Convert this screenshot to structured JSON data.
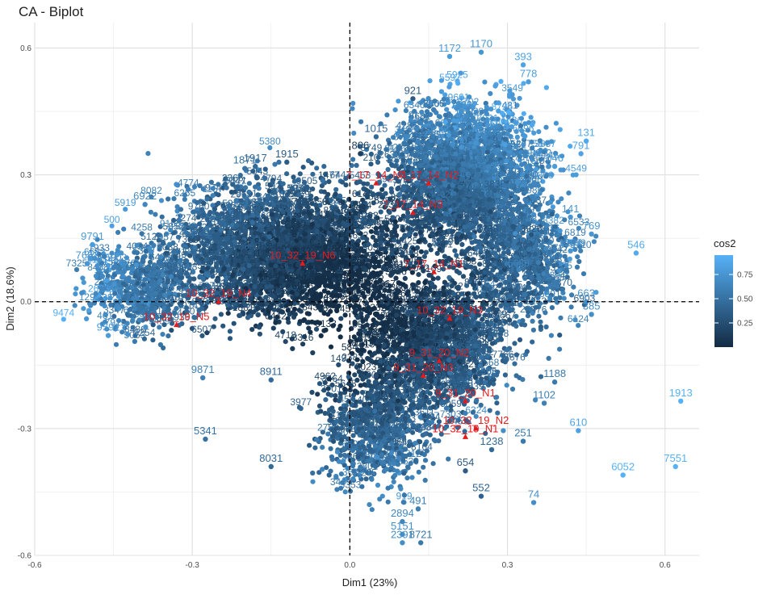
{
  "chart_data": {
    "type": "scatter",
    "title": "CA - Biplot",
    "xlabel": "Dim1 (23%)",
    "ylabel": "Dim2 (18.6%)",
    "xlim": [
      -0.6,
      0.665
    ],
    "ylim": [
      -0.6,
      0.66
    ],
    "xticks": [
      -0.6,
      -0.3,
      0.0,
      0.3,
      0.6
    ],
    "yticks": [
      -0.6,
      -0.3,
      0.0,
      0.3,
      0.6
    ],
    "xtick_labels": [
      "-0.6",
      "-0.3",
      "0.0",
      "0.3",
      "0.6"
    ],
    "ytick_labels": [
      "-0.6",
      "-0.3",
      "0.0",
      "0.3",
      "0.6"
    ],
    "grid": true,
    "reference_lines": {
      "x": 0,
      "y": 0,
      "style": "dashed"
    },
    "color_variable": "cos2",
    "color_scale": {
      "low": "#132b43",
      "high": "#56b1f7",
      "range": [
        0.0,
        0.95
      ]
    },
    "legend": {
      "title": "cos2",
      "ticks": [
        0.25,
        0.5,
        0.75
      ],
      "tick_labels": [
        "0.25",
        "0.50",
        "0.75"
      ],
      "position": "right"
    },
    "row_points": [
      {
        "label": "1172",
        "x": 0.19,
        "y": 0.58,
        "cos2": 0.8
      },
      {
        "label": "1170",
        "x": 0.25,
        "y": 0.59,
        "cos2": 0.75
      },
      {
        "label": "393",
        "x": 0.33,
        "y": 0.56,
        "cos2": 0.85
      },
      {
        "label": "778",
        "x": 0.34,
        "y": 0.52,
        "cos2": 0.8
      },
      {
        "label": "921",
        "x": 0.12,
        "y": 0.48,
        "cos2": 0.35
      },
      {
        "label": "1015",
        "x": 0.05,
        "y": 0.39,
        "cos2": 0.45
      },
      {
        "label": "806",
        "x": 0.02,
        "y": 0.35,
        "cos2": 0.15
      },
      {
        "label": "131",
        "x": 0.45,
        "y": 0.38,
        "cos2": 0.9
      },
      {
        "label": "791",
        "x": 0.44,
        "y": 0.35,
        "cos2": 0.85
      },
      {
        "label": "646",
        "x": 0.39,
        "y": 0.32,
        "cos2": 0.8
      },
      {
        "label": "141",
        "x": 0.42,
        "y": 0.2,
        "cos2": 0.75
      },
      {
        "label": "769",
        "x": 0.46,
        "y": 0.16,
        "cos2": 0.75
      },
      {
        "label": "546",
        "x": 0.545,
        "y": 0.115,
        "cos2": 0.9
      },
      {
        "label": "1204",
        "x": 0.42,
        "y": 0.12,
        "cos2": 0.75
      },
      {
        "label": "663",
        "x": 0.45,
        "y": 0.0,
        "cos2": 0.7
      },
      {
        "label": "385",
        "x": 0.46,
        "y": -0.03,
        "cos2": 0.7
      },
      {
        "label": "1913",
        "x": 0.63,
        "y": -0.235,
        "cos2": 0.95
      },
      {
        "label": "610",
        "x": 0.435,
        "y": -0.305,
        "cos2": 0.85
      },
      {
        "label": "6052",
        "x": 0.52,
        "y": -0.41,
        "cos2": 0.95
      },
      {
        "label": "7551",
        "x": 0.62,
        "y": -0.39,
        "cos2": 0.95
      },
      {
        "label": "74",
        "x": 0.35,
        "y": -0.475,
        "cos2": 0.7
      },
      {
        "label": "552",
        "x": 0.25,
        "y": -0.46,
        "cos2": 0.4
      },
      {
        "label": "654",
        "x": 0.22,
        "y": -0.4,
        "cos2": 0.35
      },
      {
        "label": "251",
        "x": 0.33,
        "y": -0.33,
        "cos2": 0.55
      },
      {
        "label": "1238",
        "x": 0.27,
        "y": -0.35,
        "cos2": 0.45
      },
      {
        "label": "1102",
        "x": 0.37,
        "y": -0.24,
        "cos2": 0.6
      },
      {
        "label": "1188",
        "x": 0.39,
        "y": -0.19,
        "cos2": 0.55
      },
      {
        "label": "5341",
        "x": -0.275,
        "y": -0.325,
        "cos2": 0.5
      },
      {
        "label": "8031",
        "x": -0.15,
        "y": -0.39,
        "cos2": 0.45
      },
      {
        "label": "2894",
        "x": 0.1,
        "y": -0.52,
        "cos2": 0.65
      },
      {
        "label": "491",
        "x": 0.13,
        "y": -0.49,
        "cos2": 0.6
      },
      {
        "label": "5151",
        "x": 0.1,
        "y": -0.55,
        "cos2": 0.7
      },
      {
        "label": "2391",
        "x": 0.1,
        "y": -0.57,
        "cos2": 0.7
      },
      {
        "label": "8721",
        "x": 0.135,
        "y": -0.57,
        "cos2": 0.55
      },
      {
        "label": "9791",
        "x": -0.49,
        "y": 0.135,
        "cos2": 0.8
      },
      {
        "label": "7682",
        "x": -0.5,
        "y": 0.09,
        "cos2": 0.75
      },
      {
        "label": "6922",
        "x": -0.39,
        "y": 0.23,
        "cos2": 0.65
      },
      {
        "label": "9591",
        "x": -0.46,
        "y": -0.08,
        "cos2": 0.8
      },
      {
        "label": "9871",
        "x": -0.28,
        "y": -0.18,
        "cos2": 0.6
      },
      {
        "label": "8911",
        "x": -0.15,
        "y": -0.185,
        "cos2": 0.45
      },
      {
        "label": "1915",
        "x": -0.12,
        "y": 0.33,
        "cos2": 0.35
      },
      {
        "label": "1917",
        "x": -0.18,
        "y": 0.32,
        "cos2": 0.45
      },
      {
        "label": "1871",
        "x": -0.2,
        "y": 0.315,
        "cos2": 0.5
      }
    ],
    "column_points": [
      {
        "label": "10_32_19_N6",
        "x": -0.09,
        "y": 0.09
      },
      {
        "label": "10_32_19_N4",
        "x": -0.25,
        "y": 0.0
      },
      {
        "label": "10_32_19_N5",
        "x": -0.33,
        "y": -0.055
      },
      {
        "label": "7_17_14_N1",
        "x": 0.16,
        "y": 0.07
      },
      {
        "label": "7_17_14_N3",
        "x": 0.12,
        "y": 0.21
      },
      {
        "label": "7_17_14_N2",
        "x": 0.15,
        "y": 0.28
      },
      {
        "label": "7_17_14_N4",
        "x": 0.05,
        "y": 0.28
      },
      {
        "label": "10_32_19_N3",
        "x": 0.19,
        "y": -0.04
      },
      {
        "label": "9_31_20_N2",
        "x": 0.17,
        "y": -0.14
      },
      {
        "label": "9_31_20_N3",
        "x": 0.14,
        "y": -0.175
      },
      {
        "label": "9_31_20_N1",
        "x": 0.22,
        "y": -0.235
      },
      {
        "label": "10_32_19_N2",
        "x": 0.24,
        "y": -0.3
      },
      {
        "label": "10_32_19_N1",
        "x": 0.22,
        "y": -0.32
      }
    ],
    "column_color": "#e41a1c"
  }
}
